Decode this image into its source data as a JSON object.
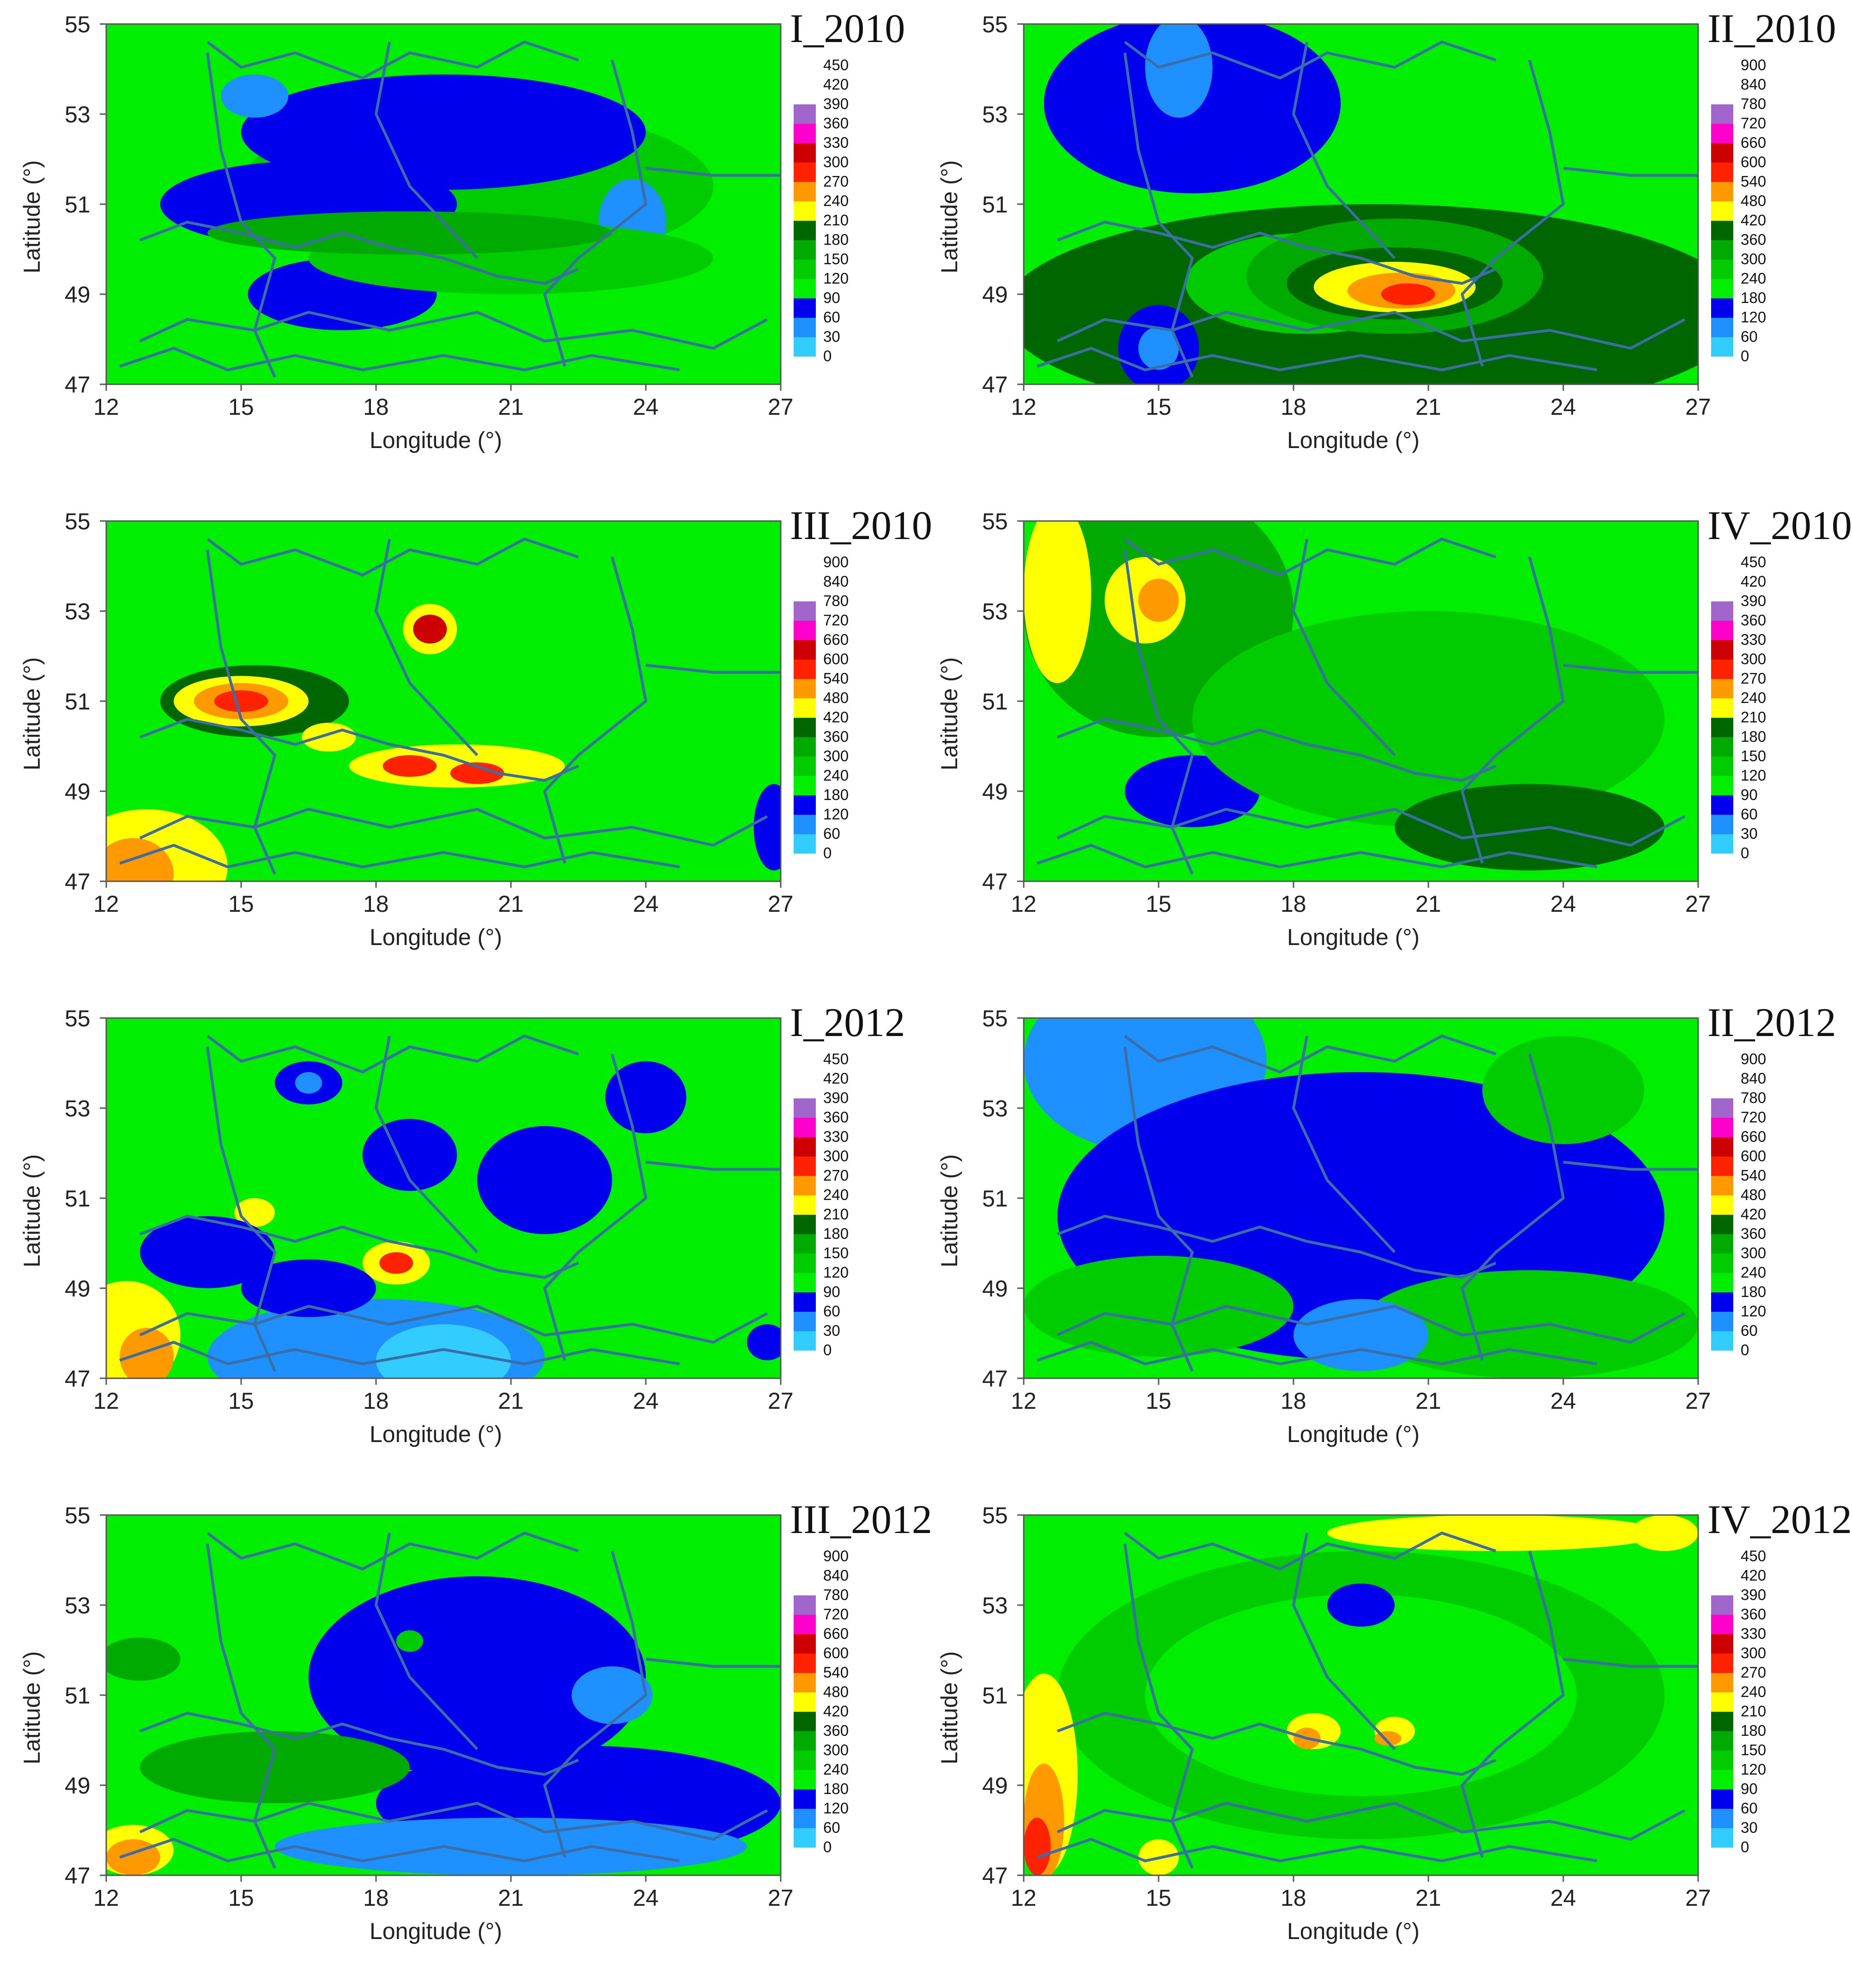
{
  "axes": {
    "xlabel": "Longitude (°)",
    "ylabel": "Latitude (°)",
    "xticks": [
      "12",
      "15",
      "18",
      "21",
      "24",
      "27"
    ],
    "yticks": [
      "47",
      "49",
      "51",
      "53",
      "55"
    ],
    "xlim": [
      12,
      27
    ],
    "ylim": [
      47,
      55
    ]
  },
  "colors": {
    "border_line": "#3a6ea5",
    "scale": [
      "#33ccff",
      "#1e90ff",
      "#0000ee",
      "#00ee00",
      "#00cc00",
      "#00aa00",
      "#006600",
      "#ffff00",
      "#ff9900",
      "#ff2200",
      "#cc0000",
      "#ff00cc",
      "#a066cc"
    ]
  },
  "legend_small": [
    "450",
    "420",
    "390",
    "360",
    "330",
    "300",
    "270",
    "240",
    "210",
    "180",
    "150",
    "120",
    "90",
    "60",
    "30",
    "0"
  ],
  "legend_large": [
    "900",
    "840",
    "780",
    "720",
    "660",
    "600",
    "540",
    "480",
    "420",
    "360",
    "300",
    "240",
    "180",
    "120",
    "60",
    "0"
  ],
  "panels": [
    {
      "title": "I_2010",
      "scale": "small"
    },
    {
      "title": "II_2010",
      "scale": "large"
    },
    {
      "title": "III_2010",
      "scale": "large"
    },
    {
      "title": "IV_2010",
      "scale": "small"
    },
    {
      "title": "I_2012",
      "scale": "small"
    },
    {
      "title": "II_2012",
      "scale": "large"
    },
    {
      "title": "III_2012",
      "scale": "large"
    },
    {
      "title": "IV_2012",
      "scale": "small"
    }
  ]
}
